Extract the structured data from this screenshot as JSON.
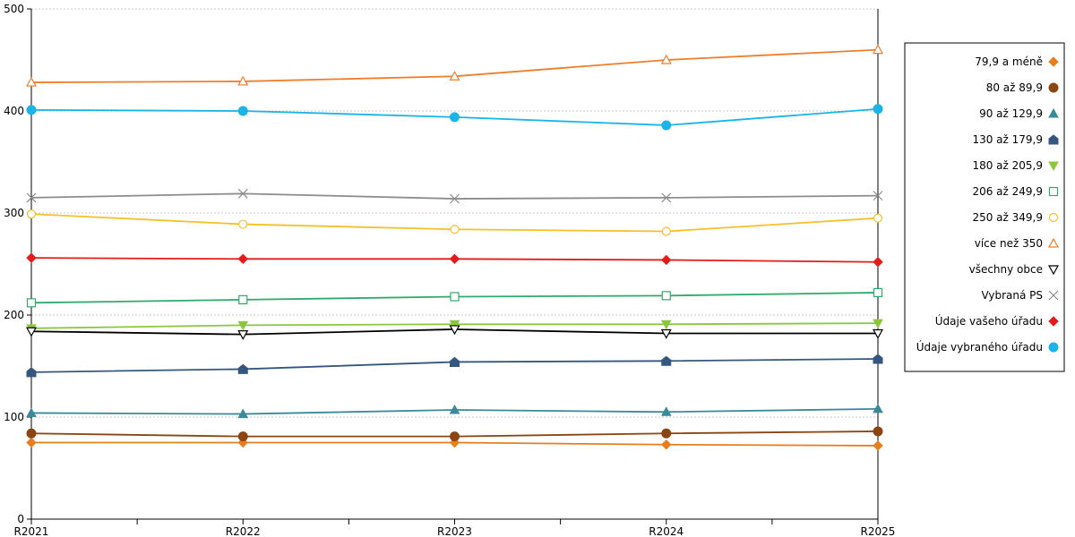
{
  "chart_data": {
    "type": "line",
    "title": "",
    "xlabel": "",
    "ylabel": "",
    "x": [
      "R2021",
      "R2022",
      "R2023",
      "R2024",
      "R2025"
    ],
    "ylim": [
      0,
      500
    ],
    "yticks": [
      0,
      100,
      200,
      300,
      400,
      500
    ],
    "grid": true,
    "legend_position": "right",
    "series": [
      {
        "name": "79,9 a méně",
        "color": "#e87d1e",
        "marker": "diamond",
        "values": [
          75,
          75,
          75,
          73,
          72
        ]
      },
      {
        "name": "80 až 89,9",
        "color": "#8b4513",
        "marker": "circle",
        "values": [
          84,
          81,
          81,
          84,
          86
        ]
      },
      {
        "name": "90 až 129,9",
        "color": "#3a8a9a",
        "marker": "triangle-up",
        "values": [
          104,
          103,
          107,
          105,
          108
        ]
      },
      {
        "name": "130 až 179,9",
        "color": "#35577f",
        "marker": "pentagon",
        "values": [
          144,
          147,
          154,
          155,
          157
        ]
      },
      {
        "name": "180 až 205,9",
        "color": "#8cc63f",
        "marker": "triangle-down",
        "values": [
          187,
          190,
          191,
          191,
          192
        ]
      },
      {
        "name": "206 až 249,9",
        "color": "#2eaa6a",
        "marker": "square-open",
        "values": [
          212,
          215,
          218,
          219,
          222
        ]
      },
      {
        "name": "250 až 349,9",
        "color": "#f5c02a",
        "marker": "circle-open",
        "values": [
          299,
          289,
          284,
          282,
          295
        ]
      },
      {
        "name": "více než 350",
        "color": "#ef7d2a",
        "marker": "triangle-up-open",
        "values": [
          428,
          429,
          434,
          450,
          460
        ]
      },
      {
        "name": "všechny obce",
        "color": "#000000",
        "marker": "triangle-down-open",
        "values": [
          184,
          181,
          186,
          182,
          182
        ]
      },
      {
        "name": "Vybraná PS",
        "color": "#8c8c8c",
        "marker": "x",
        "values": [
          315,
          319,
          314,
          315,
          317
        ]
      },
      {
        "name": "Údaje vašeho úřadu",
        "color": "#e51b1b",
        "marker": "diamond",
        "values": [
          256,
          255,
          255,
          254,
          252
        ]
      },
      {
        "name": "Údaje vybraného úřadu",
        "color": "#1ab4e8",
        "marker": "circle",
        "values": [
          401,
          400,
          394,
          386,
          402
        ]
      }
    ]
  }
}
